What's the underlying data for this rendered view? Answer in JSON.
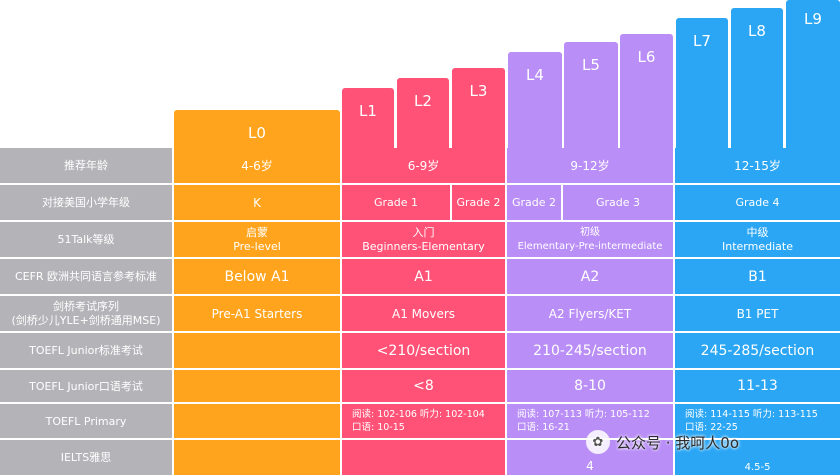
{
  "levels": [
    "L0",
    "L1",
    "L2",
    "L3",
    "L4",
    "L5",
    "L6",
    "L7",
    "L8",
    "L9"
  ],
  "row_labels": [
    "推荐年龄",
    "对接美国小学年级",
    "51Talk等级",
    "CEFR 欧洲共同语言参考标准",
    "剑桥考试序列",
    "(剑桥少儿YLE+剑桥通用MSE)",
    "TOEFL Junior标准考试",
    "TOEFL Junior口语考试",
    "TOEFL Primary",
    "IELTS雅思"
  ],
  "age": [
    "4-6岁",
    "6-9岁",
    "9-12岁",
    "12-15岁"
  ],
  "grade": [
    "K",
    "Grade 1",
    "Grade 2",
    "Grade 2",
    "Grade 3",
    "Grade 4"
  ],
  "talk51": [
    {
      "cn": "启蒙",
      "en": "Pre-level"
    },
    {
      "cn": "入门",
      "en": "Beginners-Elementary"
    },
    {
      "cn": "初级",
      "en": "Elementary-Pre-intermediate"
    },
    {
      "cn": "中级",
      "en": "Intermediate"
    }
  ],
  "cefr": [
    "Below A1",
    "A1",
    "A2",
    "B1"
  ],
  "cambridge": [
    "Pre-A1 Starters",
    "A1 Movers",
    "A2 Flyers/KET",
    "B1 PET"
  ],
  "toefl_junior": [
    "<210/section",
    "210-245/section",
    "245-285/section"
  ],
  "toefl_junior_oral": [
    "<8",
    "8-10",
    "11-13"
  ],
  "toefl_primary": [
    {
      "line1": "阅读: 102-106  听力: 102-104",
      "line2": "口语: 10-15"
    },
    {
      "line1": "阅读: 107-113  听力: 105-112",
      "line2": "口语: 16-21"
    },
    {
      "line1": "阅读: 114-115  听力: 113-115",
      "line2": "口语: 22-25"
    }
  ],
  "ielts": [
    "4",
    "4.5-5"
  ],
  "watermark": {
    "icon": "wechat-icon",
    "text": "公众号 · 我呵人0o"
  },
  "colors": {
    "orange": "#ffa41c",
    "red": "#ff5276",
    "purple": "#b98ef7",
    "blue": "#2aa6f4",
    "gray": "#b4b4b8"
  }
}
